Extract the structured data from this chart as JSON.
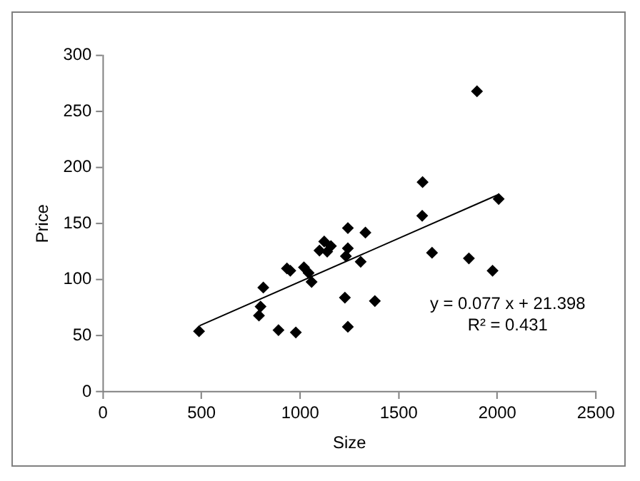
{
  "chart_data": {
    "type": "scatter",
    "xlabel": "Size",
    "ylabel": "Price",
    "xlim": [
      0,
      2500
    ],
    "xticks": [
      0,
      500,
      1000,
      1500,
      2000,
      2500
    ],
    "ylim": [
      0,
      300
    ],
    "yticks": [
      0,
      50,
      100,
      150,
      200,
      250,
      300
    ],
    "grid": false,
    "legend": false,
    "marker": "diamond",
    "annotations": [
      "y = 0.077 x + 21.398",
      "R² = 0.431"
    ],
    "series": [
      {
        "color": "#000000",
        "x": [
          487,
          813,
          799,
          791,
          890,
          978,
          933,
          950,
          1019,
          1043,
          1058,
          1098,
          1122,
          1137,
          1156,
          1242,
          1242,
          1232,
          1227,
          1242,
          1307,
          1331,
          1379,
          1621,
          1619,
          1669,
          1856,
          1897,
          1976,
          2007
        ],
        "values": [
          54,
          93,
          76,
          68,
          55,
          53,
          110,
          108,
          111,
          106,
          98,
          126,
          134,
          125,
          130,
          146,
          128,
          121,
          84,
          58,
          116,
          142,
          81,
          187,
          157,
          124,
          119,
          268,
          108,
          172
        ]
      },
      {
        "type": "line",
        "color": "#000000",
        "x": [
          490,
          2007
        ],
        "values": [
          59,
          176
        ],
        "marker": "none"
      }
    ]
  }
}
